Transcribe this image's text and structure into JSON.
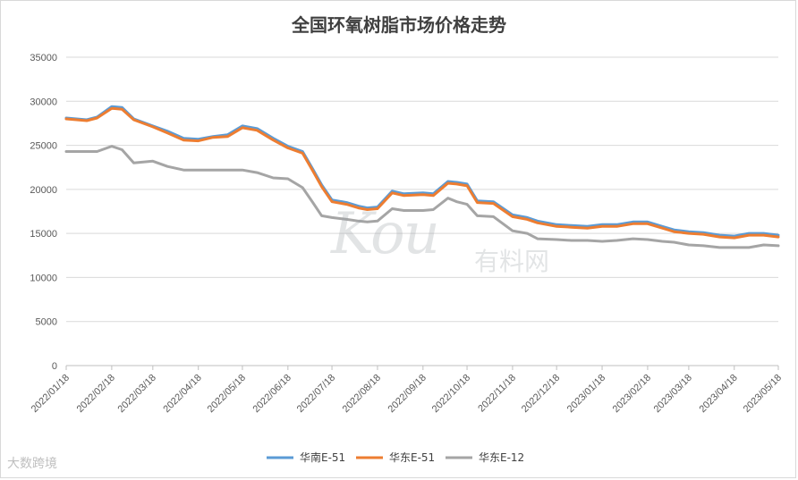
{
  "chart_data": {
    "type": "line",
    "title": "全国环氧树脂市场价格走势",
    "xlabel": "",
    "ylabel": "",
    "ylim": [
      0,
      35000
    ],
    "yticks": [
      0,
      5000,
      10000,
      15000,
      20000,
      25000,
      30000,
      35000
    ],
    "xticks": [
      "2022/01/18",
      "2022/02/18",
      "2022/03/18",
      "2022/04/18",
      "2022/05/18",
      "2022/06/18",
      "2022/07/18",
      "2022/08/18",
      "2022/09/18",
      "2022/10/18",
      "2022/11/18",
      "2022/12/18",
      "2023/01/18",
      "2023/02/18",
      "2023/03/18",
      "2023/04/18",
      "2023/05/18"
    ],
    "grid": true,
    "legend_position": "bottom",
    "x": [
      "2022/01/18",
      "2022/02/01",
      "2022/02/08",
      "2022/02/18",
      "2022/02/25",
      "2022/03/05",
      "2022/03/18",
      "2022/03/28",
      "2022/04/08",
      "2022/04/18",
      "2022/04/28",
      "2022/05/08",
      "2022/05/18",
      "2022/05/28",
      "2022/06/08",
      "2022/06/18",
      "2022/06/28",
      "2022/07/05",
      "2022/07/11",
      "2022/07/18",
      "2022/07/28",
      "2022/08/05",
      "2022/08/11",
      "2022/08/18",
      "2022/08/28",
      "2022/09/05",
      "2022/09/18",
      "2022/09/25",
      "2022/10/05",
      "2022/10/11",
      "2022/10/18",
      "2022/10/25",
      "2022/11/05",
      "2022/11/18",
      "2022/11/28",
      "2022/12/05",
      "2022/12/18",
      "2022/12/28",
      "2023/01/08",
      "2023/01/18",
      "2023/01/28",
      "2023/02/08",
      "2023/02/18",
      "2023/02/28",
      "2023/03/08",
      "2023/03/18",
      "2023/03/28",
      "2023/04/08",
      "2023/04/18",
      "2023/04/28",
      "2023/05/08",
      "2023/05/18"
    ],
    "series": [
      {
        "name": "华南E-51",
        "color": "#5b9bd5",
        "values": [
          28100,
          27900,
          28200,
          29400,
          29300,
          28000,
          27200,
          26600,
          25800,
          25700,
          26000,
          26200,
          27200,
          26900,
          25800,
          24900,
          24300,
          22300,
          20500,
          18800,
          18500,
          18100,
          17900,
          18000,
          19800,
          19500,
          19600,
          19500,
          20900,
          20800,
          20600,
          18700,
          18600,
          17100,
          16800,
          16400,
          16000,
          15900,
          15800,
          16000,
          16000,
          16300,
          16300,
          15800,
          15400,
          15200,
          15100,
          14800,
          14700,
          15000,
          15000,
          14800
        ]
      },
      {
        "name": "华东E-51",
        "color": "#ed7d31",
        "values": [
          28000,
          27800,
          28100,
          29200,
          29100,
          27900,
          27100,
          26400,
          25600,
          25500,
          25900,
          26000,
          27000,
          26700,
          25600,
          24700,
          24100,
          22100,
          20300,
          18600,
          18300,
          17900,
          17700,
          17800,
          19600,
          19300,
          19400,
          19300,
          20700,
          20600,
          20400,
          18500,
          18400,
          16900,
          16600,
          16200,
          15800,
          15700,
          15600,
          15800,
          15800,
          16100,
          16100,
          15600,
          15200,
          15000,
          14900,
          14600,
          14500,
          14800,
          14800,
          14600
        ]
      },
      {
        "name": "华东E-12",
        "color": "#a5a5a5",
        "values": [
          24300,
          24300,
          24300,
          24900,
          24500,
          23000,
          23200,
          22600,
          22200,
          22200,
          22200,
          22200,
          22200,
          21900,
          21300,
          21200,
          20200,
          18500,
          17000,
          16800,
          16600,
          16400,
          16300,
          16400,
          17800,
          17600,
          17600,
          17700,
          19000,
          18600,
          18300,
          17000,
          16900,
          15300,
          15000,
          14400,
          14300,
          14200,
          14200,
          14100,
          14200,
          14400,
          14300,
          14100,
          14000,
          13700,
          13600,
          13400,
          13400,
          13400,
          13700,
          13600
        ]
      }
    ]
  },
  "watermark": {
    "center_big": "Kou",
    "center_small": "有料网",
    "corner": "大数跨境"
  }
}
